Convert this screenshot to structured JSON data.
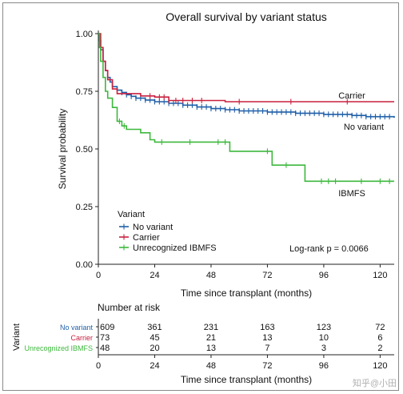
{
  "watermark": "知乎@小田",
  "chart_data": {
    "type": "line",
    "title": "Overall survival by variant status",
    "xlabel": "Time since transplant (months)",
    "ylabel": "Survival probability",
    "xlim": [
      0,
      126
    ],
    "ylim": [
      0,
      1.0
    ],
    "xticks": [
      0,
      24,
      48,
      72,
      96,
      120
    ],
    "yticks": [
      0.0,
      0.25,
      0.5,
      0.75,
      1.0
    ],
    "ytick_labels": [
      "0.00",
      "0.25",
      "0.50",
      "0.75",
      "1.00"
    ],
    "legend_title": "Variant",
    "legend_position": "bottom-left",
    "annotation": "Log-rank p = 0.0066",
    "series": [
      {
        "name": "No variant",
        "color": "#1f5fa8",
        "end_label": "No variant",
        "points": [
          [
            0,
            1.0
          ],
          [
            0.5,
            0.97
          ],
          [
            1,
            0.93
          ],
          [
            2,
            0.88
          ],
          [
            3,
            0.84
          ],
          [
            4,
            0.81
          ],
          [
            5,
            0.79
          ],
          [
            6,
            0.77
          ],
          [
            8,
            0.755
          ],
          [
            10,
            0.745
          ],
          [
            12,
            0.735
          ],
          [
            14,
            0.728
          ],
          [
            16,
            0.72
          ],
          [
            20,
            0.712
          ],
          [
            24,
            0.705
          ],
          [
            30,
            0.698
          ],
          [
            36,
            0.69
          ],
          [
            42,
            0.682
          ],
          [
            48,
            0.675
          ],
          [
            54,
            0.67
          ],
          [
            60,
            0.665
          ],
          [
            72,
            0.66
          ],
          [
            84,
            0.655
          ],
          [
            96,
            0.65
          ],
          [
            108,
            0.645
          ],
          [
            114,
            0.64
          ],
          [
            126,
            0.635
          ]
        ],
        "censor_x": [
          10,
          12,
          14,
          16,
          18,
          20,
          22,
          24,
          26,
          28,
          30,
          32,
          34,
          36,
          38,
          40,
          42,
          44,
          46,
          48,
          50,
          52,
          54,
          56,
          58,
          60,
          62,
          64,
          66,
          68,
          70,
          72,
          74,
          76,
          78,
          80,
          82,
          84,
          86,
          88,
          90,
          92,
          94,
          96,
          98,
          100,
          102,
          104,
          106,
          108,
          110,
          112,
          114,
          116,
          118,
          120,
          122,
          124
        ]
      },
      {
        "name": "Carrier",
        "color": "#c8213f",
        "end_label": "Carrier",
        "points": [
          [
            0,
            1.0
          ],
          [
            1,
            0.94
          ],
          [
            2,
            0.88
          ],
          [
            3,
            0.84
          ],
          [
            4,
            0.8
          ],
          [
            6,
            0.76
          ],
          [
            8,
            0.74
          ],
          [
            12,
            0.74
          ],
          [
            18,
            0.73
          ],
          [
            24,
            0.725
          ],
          [
            30,
            0.71
          ],
          [
            42,
            0.71
          ],
          [
            54,
            0.705
          ],
          [
            126,
            0.705
          ]
        ],
        "censor_x": [
          22,
          26,
          28,
          30,
          33,
          36,
          40,
          44,
          60,
          82,
          106
        ]
      },
      {
        "name": "Unrecognized IBMFS",
        "color": "#3db83d",
        "end_label": "IBMFS",
        "points": [
          [
            0,
            1.0
          ],
          [
            0.5,
            0.94
          ],
          [
            1,
            0.88
          ],
          [
            2,
            0.81
          ],
          [
            3,
            0.75
          ],
          [
            4,
            0.72
          ],
          [
            6,
            0.68
          ],
          [
            8,
            0.62
          ],
          [
            10,
            0.6
          ],
          [
            12,
            0.585
          ],
          [
            18,
            0.57
          ],
          [
            22,
            0.54
          ],
          [
            24,
            0.53
          ],
          [
            48,
            0.53
          ],
          [
            56,
            0.49
          ],
          [
            66,
            0.49
          ],
          [
            74,
            0.43
          ],
          [
            87,
            0.43
          ],
          [
            88,
            0.36
          ],
          [
            126,
            0.36
          ]
        ],
        "censor_x": [
          9,
          11,
          27,
          39,
          51,
          54,
          72,
          80,
          95,
          98,
          101,
          112,
          120,
          124
        ]
      }
    ],
    "risk_table": {
      "title": "Number at risk",
      "row_axis_label": "Variant",
      "xlabel": "Time since transplant (months)",
      "times": [
        0,
        24,
        48,
        72,
        96,
        120
      ],
      "rows": [
        {
          "label": "No variant",
          "color": "#1f5fa8",
          "counts": [
            609,
            361,
            231,
            163,
            123,
            72
          ]
        },
        {
          "label": "Carrier",
          "color": "#c8213f",
          "counts": [
            73,
            45,
            21,
            13,
            10,
            6
          ]
        },
        {
          "label": "Unrecognized IBMFS",
          "color": "#3db83d",
          "counts": [
            48,
            20,
            13,
            7,
            3,
            2
          ]
        }
      ]
    }
  }
}
